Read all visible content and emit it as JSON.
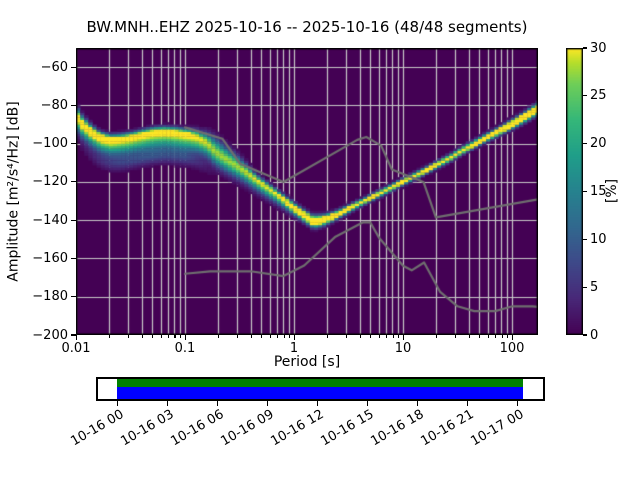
{
  "title": "BW.MNH..EHZ   2025-10-16 -- 2025-10-16  (48/48 segments)",
  "chart_data": {
    "type": "heatmap",
    "title": "BW.MNH..EHZ   2025-10-16 -- 2025-10-16  (48/48 segments)",
    "xlabel": "Period [s]",
    "ylabel": "Amplitude [m²/s⁴/Hz] [dB]",
    "xscale": "log",
    "xlim": [
      0.01,
      173
    ],
    "ylim": [
      -200,
      -50
    ],
    "grid": true,
    "background_color": "#440154",
    "grid_color": "#c9c9c9",
    "frame_color": "#000000",
    "xticks": [
      0.01,
      0.1,
      1,
      10,
      100
    ],
    "xtick_labels": [
      "0.01",
      "0.1",
      "1",
      "10",
      "100"
    ],
    "yticks": [
      -60,
      -80,
      -100,
      -120,
      -140,
      -160,
      -180,
      -200
    ],
    "ytick_labels": [
      "−60",
      "−80",
      "−100",
      "−120",
      "−140",
      "−160",
      "−180",
      "−200"
    ],
    "colorbar": {
      "label": "[%]",
      "vmin": 0,
      "vmax": 30,
      "ticks": [
        0,
        5,
        10,
        15,
        20,
        25,
        30
      ],
      "tick_labels": [
        "0",
        "5",
        "10",
        "15",
        "20",
        "25",
        "30"
      ]
    },
    "colormap_name": "viridis",
    "colormap_stops": [
      [
        0.0,
        "#440154"
      ],
      [
        0.125,
        "#482878"
      ],
      [
        0.25,
        "#3e4989"
      ],
      [
        0.375,
        "#31688e"
      ],
      [
        0.5,
        "#26828e"
      ],
      [
        0.625,
        "#1f9e89"
      ],
      [
        0.75,
        "#35b779"
      ],
      [
        0.875,
        "#6ece58"
      ],
      [
        0.95,
        "#b5de2b"
      ],
      [
        1.0,
        "#fde725"
      ]
    ],
    "db_bin_width": 1.25,
    "period_bins_per_octave": 8,
    "psd_mode_curve": [
      [
        0.01,
        -85.0
      ],
      [
        0.0115,
        -89.5
      ],
      [
        0.014,
        -93.5
      ],
      [
        0.017,
        -96.3
      ],
      [
        0.021,
        -97.6
      ],
      [
        0.026,
        -97.2
      ],
      [
        0.032,
        -96.3
      ],
      [
        0.041,
        -94.8
      ],
      [
        0.052,
        -93.6
      ],
      [
        0.066,
        -93.3
      ],
      [
        0.083,
        -93.8
      ],
      [
        0.105,
        -94.7
      ],
      [
        0.13,
        -96.5
      ],
      [
        0.16,
        -99.5
      ],
      [
        0.188,
        -104.0
      ],
      [
        0.23,
        -107.5
      ],
      [
        0.28,
        -110.5
      ],
      [
        0.35,
        -114.0
      ],
      [
        0.43,
        -117.8
      ],
      [
        0.53,
        -121.5
      ],
      [
        0.66,
        -125.3
      ],
      [
        0.82,
        -129.3
      ],
      [
        1.0,
        -133.3
      ],
      [
        1.22,
        -137.0
      ],
      [
        1.5,
        -140.5
      ],
      [
        1.85,
        -139.8
      ],
      [
        2.3,
        -137.8
      ],
      [
        2.9,
        -135.0
      ],
      [
        3.6,
        -132.3
      ],
      [
        4.5,
        -129.6
      ],
      [
        5.6,
        -127.0
      ],
      [
        7.0,
        -124.2
      ],
      [
        8.8,
        -121.3
      ],
      [
        11.0,
        -118.6
      ],
      [
        14.0,
        -115.7
      ],
      [
        17.5,
        -112.9
      ],
      [
        22.0,
        -110.0
      ],
      [
        28.0,
        -106.9
      ],
      [
        35.0,
        -103.5
      ],
      [
        44.0,
        -100.5
      ],
      [
        55.0,
        -97.5
      ],
      [
        70.0,
        -94.5
      ],
      [
        88.0,
        -91.5
      ],
      [
        110.0,
        -88.5
      ],
      [
        140.0,
        -85.0
      ],
      [
        173.0,
        -81.5
      ]
    ],
    "psd_spread_profile": [
      {
        "t": 0.01,
        "amp": 35,
        "su": 2.8,
        "sd": 4.5,
        "amp2": 0
      },
      {
        "t": 0.016,
        "amp": 35,
        "su": 1.6,
        "sd": 5.0,
        "amp2": 3
      },
      {
        "t": 0.025,
        "amp": 32,
        "su": 1.6,
        "sd": 5.5,
        "amp2": 5
      },
      {
        "t": 0.05,
        "amp": 32,
        "su": 1.5,
        "sd": 6.0,
        "amp2": 6
      },
      {
        "t": 0.1,
        "amp": 32,
        "su": 1.6,
        "sd": 6.0,
        "amp2": 5
      },
      {
        "t": 0.14,
        "amp": 30,
        "su": 2.5,
        "sd": 5.0,
        "amp2": 3
      },
      {
        "t": 0.19,
        "amp": 28,
        "su": 4.5,
        "sd": 4.5,
        "amp2": 0
      },
      {
        "t": 0.3,
        "amp": 28,
        "su": 3.5,
        "sd": 4.0,
        "amp2": 0
      },
      {
        "t": 0.45,
        "amp": 30,
        "su": 1.8,
        "sd": 3.5,
        "amp2": 0
      },
      {
        "t": 0.7,
        "amp": 30,
        "su": 1.5,
        "sd": 3.0,
        "amp2": 0
      },
      {
        "t": 1.1,
        "amp": 40,
        "su": 1.6,
        "sd": 2.2,
        "amp2": 0
      },
      {
        "t": 1.6,
        "amp": 48,
        "su": 1.8,
        "sd": 2.0,
        "amp2": 0
      },
      {
        "t": 2.5,
        "amp": 40,
        "su": 1.3,
        "sd": 1.5,
        "amp2": 0
      },
      {
        "t": 4.0,
        "amp": 36,
        "su": 1.1,
        "sd": 1.2,
        "amp2": 0
      },
      {
        "t": 10.0,
        "amp": 36,
        "su": 1.1,
        "sd": 1.2,
        "amp2": 0
      },
      {
        "t": 30.0,
        "amp": 38,
        "su": 1.2,
        "sd": 1.2,
        "amp2": 0
      },
      {
        "t": 80.0,
        "amp": 42,
        "su": 1.4,
        "sd": 1.4,
        "amp2": 0
      },
      {
        "t": 173.0,
        "amp": 50,
        "su": 1.8,
        "sd": 1.8,
        "amp2": 0
      }
    ],
    "spread_secondary_offset": -13,
    "spread_secondary_sigma": 2.5,
    "noise_models": {
      "color": "#6f6f6f",
      "nhnm": [
        [
          0.1,
          -91.5
        ],
        [
          0.22,
          -97.4
        ],
        [
          0.32,
          -110.5
        ],
        [
          0.8,
          -120.0
        ],
        [
          3.8,
          -98.0
        ],
        [
          4.6,
          -96.5
        ],
        [
          6.3,
          -101.0
        ],
        [
          7.9,
          -113.5
        ],
        [
          15.4,
          -120.0
        ],
        [
          20.0,
          -138.5
        ],
        [
          173.0,
          -129.1
        ]
      ],
      "nlnm": [
        [
          0.1,
          -168.0
        ],
        [
          0.17,
          -166.7
        ],
        [
          0.4,
          -166.7
        ],
        [
          0.8,
          -169.2
        ],
        [
          1.24,
          -163.7
        ],
        [
          2.4,
          -148.6
        ],
        [
          4.3,
          -141.1
        ],
        [
          5.0,
          -141.1
        ],
        [
          6.0,
          -149.0
        ],
        [
          10.0,
          -163.8
        ],
        [
          12.0,
          -166.2
        ],
        [
          15.6,
          -162.1
        ],
        [
          21.9,
          -177.5
        ],
        [
          31.6,
          -185.0
        ],
        [
          45.0,
          -187.5
        ],
        [
          70.0,
          -187.5
        ],
        [
          101.0,
          -185.0
        ],
        [
          154.0,
          -185.0
        ],
        [
          173.0,
          -185.3
        ]
      ]
    },
    "timeline": {
      "tick_labels": [
        "10-16 00",
        "10-16 03",
        "10-16 06",
        "10-16 09",
        "10-16 12",
        "10-16 15",
        "10-16 18",
        "10-16 21",
        "10-17 00"
      ],
      "green_color": "#008000",
      "blue_color": "#0000ff",
      "coverage_start_frac": 0.043,
      "coverage_end_frac": 0.955
    }
  }
}
